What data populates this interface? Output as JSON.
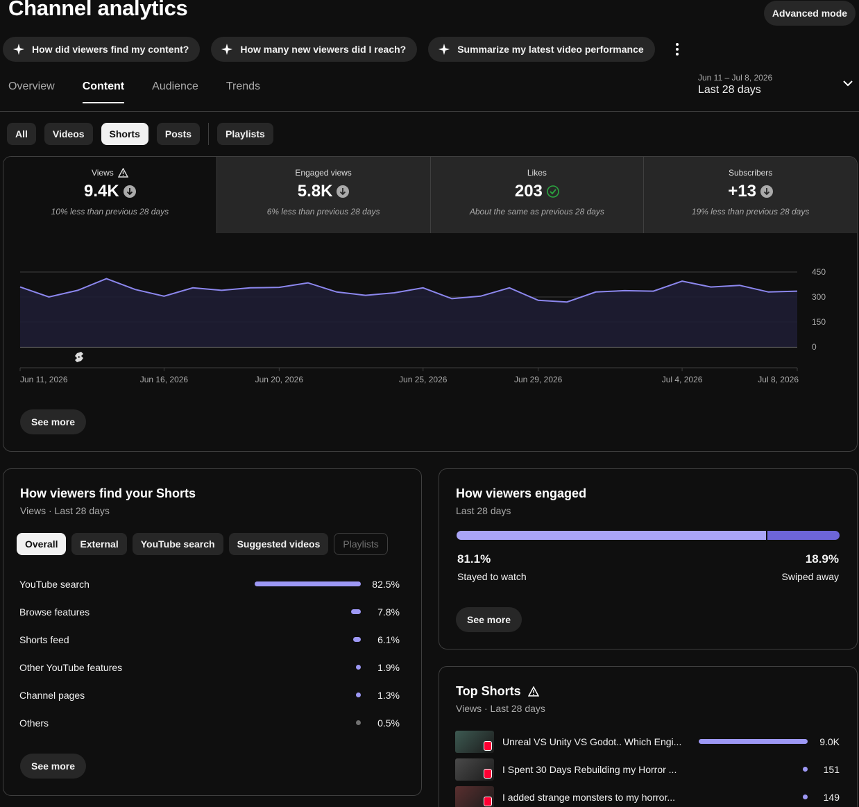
{
  "header": {
    "title": "Channel analytics",
    "advanced_mode": "Advanced mode"
  },
  "suggestions": [
    "How did viewers find my content?",
    "How many new viewers did I reach?",
    "Summarize my latest video performance"
  ],
  "tabs": [
    "Overview",
    "Content",
    "Audience",
    "Trends"
  ],
  "active_tab": "Content",
  "date_range": {
    "dates": "Jun 11 – Jul 8, 2026",
    "label": "Last 28 days"
  },
  "filters": [
    "All",
    "Videos",
    "Shorts",
    "Posts",
    "Playlists"
  ],
  "active_filter": "Shorts",
  "metrics": [
    {
      "label": "Views",
      "value": "9.4K",
      "note": "10% less than previous 28 days",
      "status": "down",
      "warning": true
    },
    {
      "label": "Engaged views",
      "value": "5.8K",
      "note": "6% less than previous 28 days",
      "status": "down",
      "warning": false
    },
    {
      "label": "Likes",
      "value": "203",
      "note": "About the same as previous 28 days",
      "status": "same",
      "warning": false
    },
    {
      "label": "Subscribers",
      "value": "+13",
      "note": "19% less than previous 28 days",
      "status": "down",
      "warning": false
    }
  ],
  "chart_data": {
    "type": "area",
    "series": [
      {
        "values": [
          360,
          300,
          340,
          410,
          345,
          305,
          355,
          340,
          355,
          358,
          385,
          330,
          310,
          325,
          355,
          290,
          305,
          355,
          280,
          270,
          330,
          338,
          335,
          395,
          360,
          370,
          330,
          335
        ]
      }
    ],
    "x_ticks": [
      "Jun 11, 2026",
      "Jun 16, 2026",
      "Jun 20, 2026",
      "Jun 25, 2026",
      "Jun 29, 2026",
      "Jul 4, 2026",
      "Jul 8, 2026"
    ],
    "y_ticks": [
      "450",
      "300",
      "150",
      "0"
    ],
    "ylim": [
      0,
      450
    ],
    "colors": {
      "line": "#8c87ee",
      "fill": "#1e1d33"
    }
  },
  "overview_see_more": "See more",
  "sources": {
    "title": "How viewers find your Shorts",
    "subtitle": "Views · Last 28 days",
    "chips": [
      "Overall",
      "External",
      "YouTube search",
      "Suggested videos",
      "Playlists"
    ],
    "rows": [
      {
        "label": "YouTube search",
        "pct": "82.5%",
        "value": 82.5
      },
      {
        "label": "Browse features",
        "pct": "7.8%",
        "value": 7.8
      },
      {
        "label": "Shorts feed",
        "pct": "6.1%",
        "value": 6.1
      },
      {
        "label": "Other YouTube features",
        "pct": "1.9%",
        "value": 1.9
      },
      {
        "label": "Channel pages",
        "pct": "1.3%",
        "value": 1.3
      },
      {
        "label": "Others",
        "pct": "0.5%",
        "value": 0.5
      }
    ],
    "see_more": "See more"
  },
  "engaged": {
    "title": "How viewers engaged",
    "subtitle": "Last 28 days",
    "stayed_pct": "81.1%",
    "stayed_label": "Stayed to watch",
    "swiped_pct": "18.9%",
    "swiped_label": "Swiped away",
    "stayed_value": 81.1,
    "see_more": "See more"
  },
  "top_shorts": {
    "title": "Top Shorts",
    "subtitle": "Views · Last 28 days",
    "rows": [
      {
        "title": "Unreal VS Unity VS Godot.. Which Engi...",
        "views": "9.0K",
        "value": 9000
      },
      {
        "title": "I Spent 30 Days Rebuilding my Horror ...",
        "views": "151",
        "value": 151
      },
      {
        "title": "I added strange monsters to my horror...",
        "views": "149",
        "value": 149
      }
    ]
  }
}
